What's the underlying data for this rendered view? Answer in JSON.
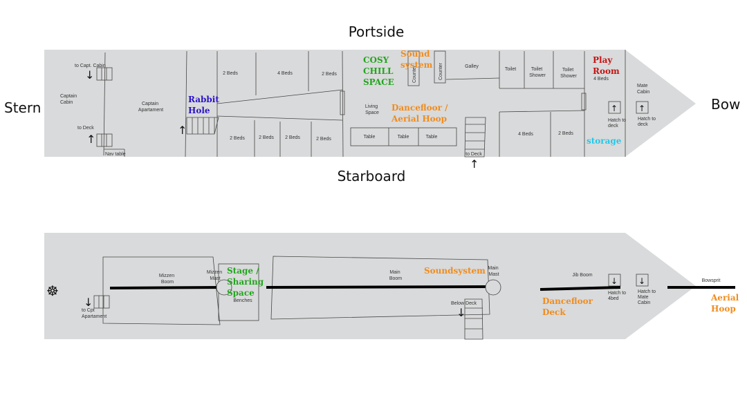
{
  "colors": {
    "hull": "#d9dadb",
    "green": "#22a61e",
    "orange": "#f08c1e",
    "blue": "#2a12c8",
    "red": "#c41414",
    "cyan": "#25c7e8"
  },
  "orientation": {
    "portside": "Portside",
    "starboard": "Starboard",
    "stern": "Stern",
    "bow": "Bow"
  },
  "lower_deck": {
    "to_capt_cabin": "to Capt. Cabin",
    "captain_cabin": [
      "Captain",
      "Cabin"
    ],
    "to_deck_left": "to Deck",
    "nav_table": "Nav table",
    "captain_apartment": [
      "Captain",
      "Apartament"
    ],
    "rabbit_hole": [
      "Rabbit",
      "Hole"
    ],
    "beds_top": [
      "2 Beds",
      "4 Beds",
      "2 Beds"
    ],
    "beds_bottom": [
      "2 Beds",
      "2 Beds",
      "2 Beds",
      "2 Beds"
    ],
    "cosy_chill": [
      "COSY",
      "CHILL",
      "SPACE"
    ],
    "sound_system": [
      "Sound",
      "system"
    ],
    "counters": [
      "Counter",
      "Counter"
    ],
    "galley": "Galley",
    "living_space": [
      "Living",
      "Space"
    ],
    "dancefloor": [
      "Dancefloor /",
      "Aerial Hoop"
    ],
    "tables": [
      "Table",
      "Table",
      "Table"
    ],
    "to_deck_mid": "to Deck",
    "toilet": "Toilet",
    "toilet_shower_1": [
      "Toilet",
      "Shower"
    ],
    "toilet_shower_2": [
      "Toilet",
      "Shower"
    ],
    "beds_right": [
      "4 Beds",
      "2 Beds"
    ],
    "play_room": [
      "Play",
      "Room"
    ],
    "play_room_beds": "4 Beds",
    "hatch_to_deck_1": [
      "Hatch to",
      "deck"
    ],
    "hatch_to_deck_2": [
      "Hatch to",
      "deck"
    ],
    "storage": "storage",
    "mate_cabin": [
      "Mate",
      "Cabin"
    ]
  },
  "upper_deck": {
    "to_cpt_apartament": [
      "to Cpt",
      "Apartament"
    ],
    "mizzen_boom": [
      "Mizzen",
      "Boom"
    ],
    "mizzen_mast": [
      "Mizzen",
      "Mast"
    ],
    "stage": [
      "Stage /",
      "Sharing",
      "Space"
    ],
    "benches": "Benches",
    "main_boom": [
      "Main",
      "Boom"
    ],
    "soundsystem": "Soundsystem",
    "main_mast": [
      "Main",
      "Mast"
    ],
    "below_deck": "Below Deck",
    "jib_boom": "Jib Boom",
    "dancefloor_deck": [
      "Dancefloor",
      "Deck"
    ],
    "hatch_to_4bed": [
      "Hatch to",
      "4bed"
    ],
    "hatch_to_mate": [
      "Hatch to",
      "Mate",
      "Cabin"
    ],
    "bowsprit": "Bowsprit",
    "aerial_hoop": [
      "Aerial",
      "Hoop"
    ]
  }
}
